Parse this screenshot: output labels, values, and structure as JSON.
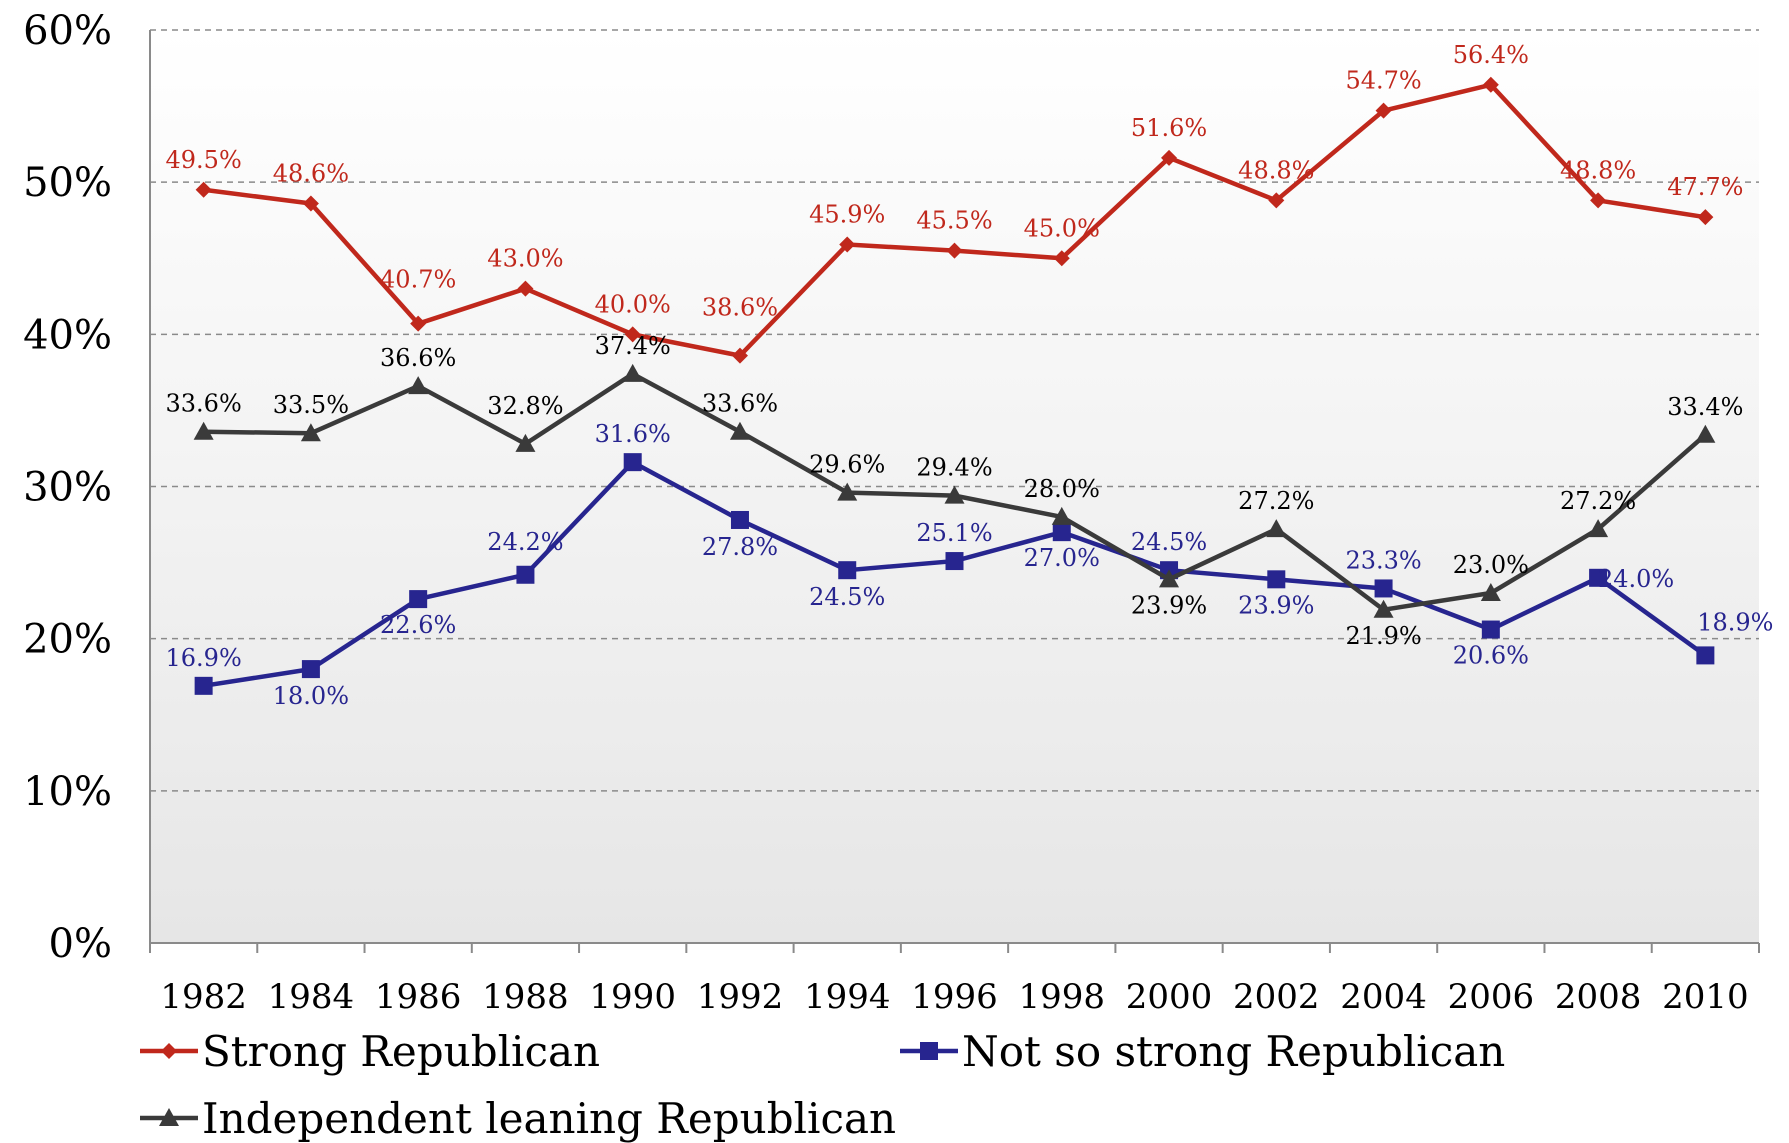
{
  "chart_data": {
    "type": "line",
    "categories": [
      "1982",
      "1984",
      "1986",
      "1988",
      "1990",
      "1992",
      "1994",
      "1996",
      "1998",
      "2000",
      "2002",
      "2004",
      "2006",
      "2008",
      "2010"
    ],
    "ylim": [
      0,
      60
    ],
    "yticks": [
      "0%",
      "10%",
      "20%",
      "30%",
      "40%",
      "50%",
      "60%"
    ],
    "grid": true,
    "legend_position": "bottom",
    "series": [
      {
        "name": "Strong Republican",
        "color": "#c0281c",
        "marker": "diamond",
        "values": [
          49.5,
          48.6,
          40.7,
          43.0,
          40.0,
          38.6,
          45.9,
          45.5,
          45.0,
          51.6,
          48.8,
          54.7,
          56.4,
          48.8,
          47.7
        ],
        "labels": [
          "49.5%",
          "48.6%",
          "40.7%",
          "43.0%",
          "40.0%",
          "38.6%",
          "45.9%",
          "45.5%",
          "45.0%",
          "51.6%",
          "48.8%",
          "54.7%",
          "56.4%",
          "48.8%",
          "47.7%"
        ]
      },
      {
        "name": "Not so strong Republican",
        "color": "#27258f",
        "marker": "square",
        "values": [
          16.9,
          18.0,
          22.6,
          24.2,
          31.6,
          27.8,
          24.5,
          25.1,
          27.0,
          24.5,
          23.9,
          23.3,
          20.6,
          24.0,
          18.9
        ],
        "labels": [
          "16.9%",
          "18.0%",
          "22.6%",
          "24.2%",
          "31.6%",
          "27.8%",
          "24.5%",
          "25.1%",
          "27.0%",
          "24.5%",
          "23.9%",
          "23.3%",
          "20.6%",
          "24.0%",
          "18.9%"
        ]
      },
      {
        "name": "Independent leaning Republican",
        "color": "#3a3a3a",
        "label_color": "#000000",
        "marker": "triangle",
        "values": [
          33.6,
          33.5,
          36.6,
          32.8,
          37.4,
          33.6,
          29.6,
          29.4,
          28.0,
          23.9,
          27.2,
          21.9,
          23.0,
          27.2,
          33.4
        ],
        "labels": [
          "33.6%",
          "33.5%",
          "36.6%",
          "32.8%",
          "37.4%",
          "33.6%",
          "29.6%",
          "29.4%",
          "28.0%",
          "23.9%",
          "27.2%",
          "21.9%",
          "23.0%",
          "27.2%",
          "33.4%"
        ]
      }
    ]
  }
}
